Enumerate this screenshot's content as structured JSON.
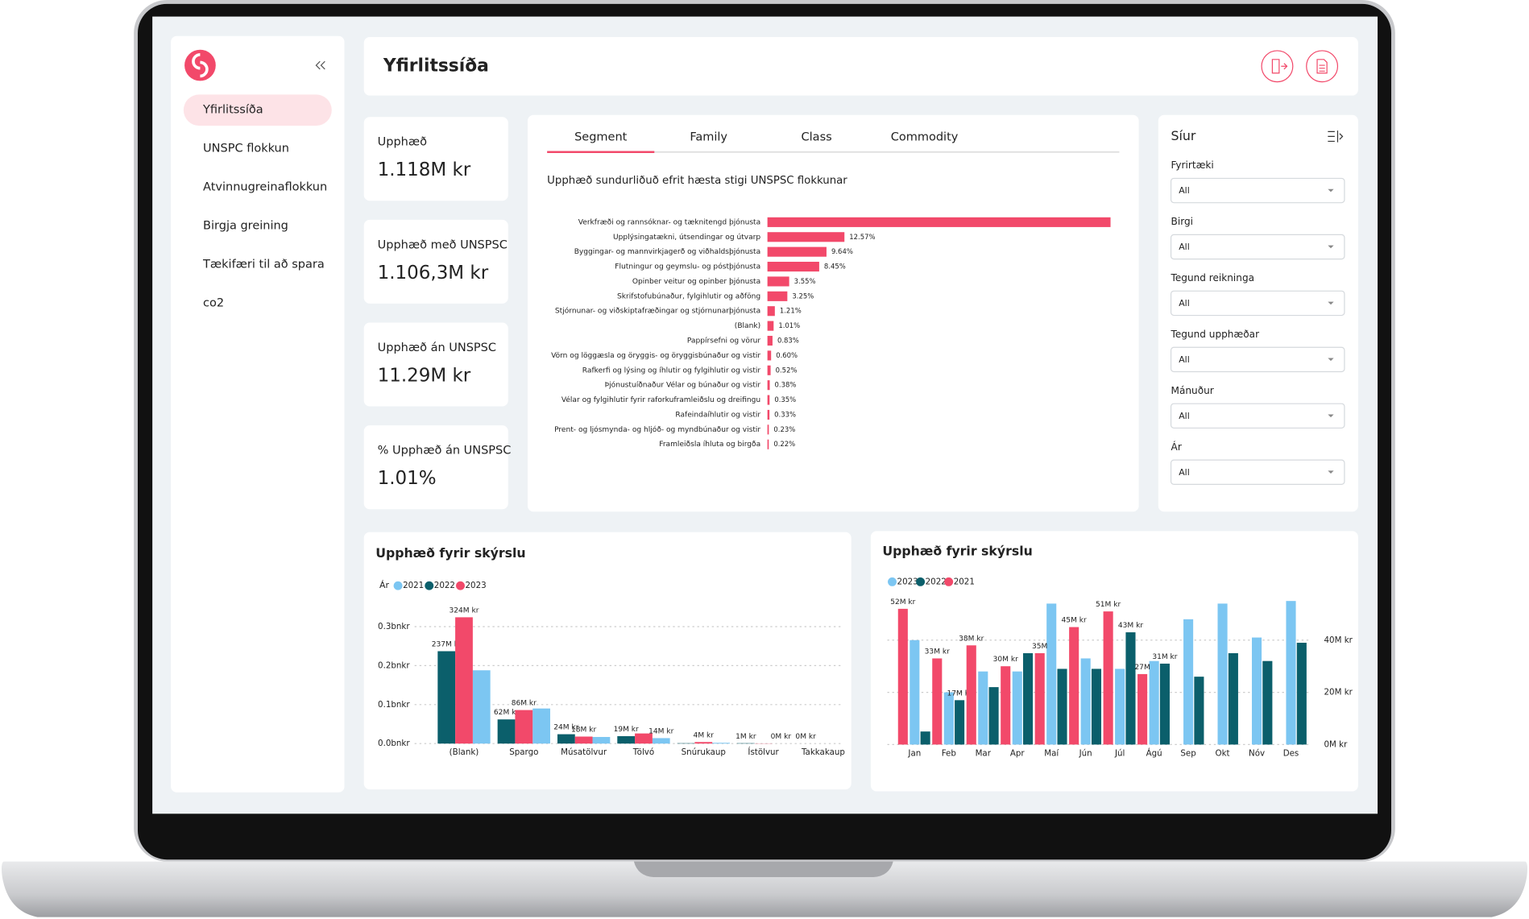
{
  "sidebar": {
    "nav": [
      "Yfirlitssíða",
      "UNSPC flokkun",
      "Atvinnugreinaflokkun",
      "Birgja greining",
      "Tækifæri til að spara",
      "co2"
    ]
  },
  "header": {
    "title": "Yfirlitssíða"
  },
  "kpis": [
    {
      "label": "Upphæð",
      "value": "1.118M kr"
    },
    {
      "label": "Upphæð með UNSPSC",
      "value": "1.106,3M kr"
    },
    {
      "label": "Upphæð án UNSPSC",
      "value": "11.29M kr"
    },
    {
      "label": "% Upphæð án UNSPSC",
      "value": "1.01%"
    }
  ],
  "tabs": [
    "Segment",
    "Family",
    "Class",
    "Commodity"
  ],
  "filters": {
    "title": "Síur",
    "items": [
      {
        "label": "Fyrirtæki",
        "value": "All"
      },
      {
        "label": "Birgi",
        "value": "All"
      },
      {
        "label": "Tegund reikninga",
        "value": "All"
      },
      {
        "label": "Tegund upphæðar",
        "value": "All"
      },
      {
        "label": "Mánuður",
        "value": "All"
      },
      {
        "label": "Ár",
        "value": "All"
      }
    ]
  },
  "chart_data": [
    {
      "type": "hbar",
      "title": "Upphæð sundurliðuð efrit hæsta stigi UNSPSC flokkunar",
      "color": "#f2496a",
      "categories": [
        "Verkfræði og rannsóknar- og tæknitengd þjónusta",
        "Upplýsingatækni, útsendingar og útvarp",
        "Byggingar- og mannvirkjagerð og viðhaldsþjónusta",
        "Flutningur og geymslu- og póstþjónusta",
        "Opinber veitur og opinber þjónusta",
        "Skrifstofubúnaður, fylgihlutir og aðföng",
        "Stjórnunar- og viðskiptafræðingar og stjórnunarþjónusta",
        "(Blank)",
        "Pappírsefni og vörur",
        "Vörn og löggæsla og öryggis- og öryggisbúnaður og vistir",
        "Rafkerfi og lýsing og íhlutir og fylgihlutir og vistir",
        "Þjónustuíðnaður Vélar og búnaður og vistir",
        "Vélar og fylgihlutir fyrir raforkuframleiðslu og dreifingu",
        "Rafeindaíhlutir og vistir",
        "Prent- og ljósmynda- og hljóð- og myndbúnaður og vistir",
        "Framleiðsla íhluta og birgða"
      ],
      "values": [
        56,
        12.57,
        9.64,
        8.45,
        3.55,
        3.25,
        1.21,
        1.01,
        0.83,
        0.6,
        0.52,
        0.38,
        0.35,
        0.33,
        0.23,
        0.22
      ],
      "value_labels": [
        null,
        "12.57%",
        "9.64%",
        "8.45%",
        "3.55%",
        "3.25%",
        "1.21%",
        "1.01%",
        "0.83%",
        "0.60%",
        "0.52%",
        "0.38%",
        "0.35%",
        "0.33%",
        "0.23%",
        "0.22%"
      ]
    },
    {
      "type": "bar",
      "title": "Upphæð fyrir skýrslu",
      "legend_title": "Ár",
      "categories": [
        "(Blank)",
        "Spargo",
        "Músatölvur",
        "Tölvó",
        "Snúrukaup",
        "Ístölvur",
        "Takkakaup"
      ],
      "ylim": [
        0,
        0.35
      ],
      "yticks": [
        {
          "value": 0,
          "label": "0.0bnkr"
        },
        {
          "value": 0.1,
          "label": "0.1bnkr"
        },
        {
          "value": 0.2,
          "label": "0.2bnkr"
        },
        {
          "value": 0.3,
          "label": "0.3bnkr"
        }
      ],
      "grid": true,
      "series": [
        {
          "name": "2021",
          "color": "#7cc6f2",
          "values": [
            0.188,
            0.09,
            0.017,
            0.014,
            0.002,
            0.0,
            0.0
          ],
          "value_labels": [
            null,
            null,
            null,
            "14M kr",
            null,
            "0M kr",
            null
          ]
        },
        {
          "name": "2022",
          "color": "#0b5f6b",
          "values": [
            0.237,
            0.062,
            0.024,
            0.019,
            0.001,
            0.001,
            0.0
          ],
          "value_labels": [
            "237M kr",
            "62M kr",
            "24M kr",
            "19M kr",
            null,
            "1M kr",
            "0M kr"
          ]
        },
        {
          "name": "2023",
          "color": "#f2496a",
          "values": [
            0.324,
            0.086,
            0.018,
            0.026,
            0.004,
            0.0005,
            0.0
          ],
          "value_labels": [
            "324M kr",
            "86M kr",
            "18M kr",
            null,
            "4M kr",
            null,
            null
          ]
        }
      ]
    },
    {
      "type": "bar",
      "title": "Upphæð fyrir skýrslu",
      "categories": [
        "Jan",
        "Feb",
        "Mar",
        "Apr",
        "Maí",
        "Jún",
        "Júl",
        "Ágú",
        "Sep",
        "Okt",
        "Nóv",
        "Des"
      ],
      "ylim": [
        0,
        56
      ],
      "yticks": [
        {
          "value": 0,
          "label": "0M kr"
        },
        {
          "value": 20,
          "label": "20M kr"
        },
        {
          "value": 40,
          "label": "40M kr"
        }
      ],
      "grid": true,
      "series": [
        {
          "name": "2023",
          "color": "#7cc6f2",
          "values": [
            40,
            20,
            28,
            28,
            54,
            33,
            29,
            32,
            48,
            54,
            41,
            55
          ]
        },
        {
          "name": "2022",
          "color": "#0b5f6b",
          "values": [
            5,
            17,
            22,
            35,
            29,
            29,
            43,
            31,
            26,
            35,
            32,
            39
          ],
          "value_labels": [
            null,
            "17M kr",
            null,
            null,
            null,
            null,
            "43M kr",
            "31M kr",
            null,
            null,
            null,
            null
          ]
        },
        {
          "name": "2021",
          "color": "#f2496a",
          "values": [
            52,
            33,
            38,
            30,
            35,
            45,
            51,
            27,
            null,
            null,
            null,
            null
          ],
          "value_labels": [
            "52M kr",
            "33M kr",
            "38M kr",
            "30M kr",
            "35M",
            "45M kr",
            "51M kr",
            "27M",
            null,
            null,
            null,
            null
          ]
        }
      ]
    }
  ]
}
